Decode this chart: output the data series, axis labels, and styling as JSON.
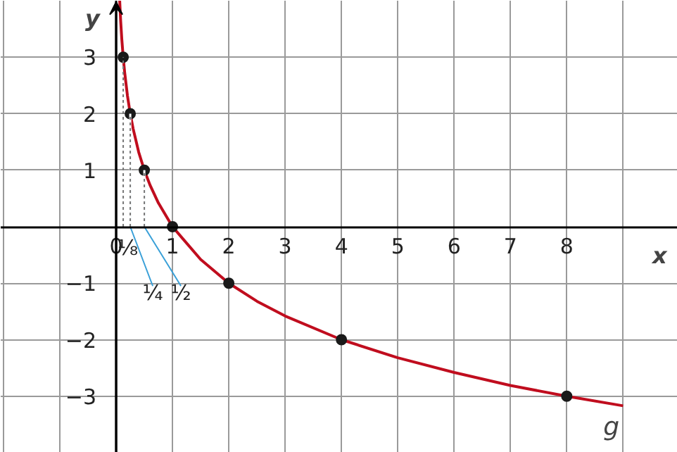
{
  "chart_data": {
    "type": "line",
    "xlabel": "x",
    "ylabel": "y",
    "xlim": [
      -2.05,
      9.97
    ],
    "ylim": [
      -4,
      4
    ],
    "xticks": [
      {
        "value": -2,
        "label": null
      },
      {
        "value": -1,
        "label": null
      },
      {
        "value": 0,
        "label": "0"
      },
      1,
      2,
      3,
      4,
      5,
      6,
      7,
      8,
      {
        "value": 9,
        "label": null
      }
    ],
    "yticks": [
      {
        "value": -4,
        "label": null
      },
      {
        "value": -3,
        "label": "−3"
      },
      {
        "value": -2,
        "label": "−2"
      },
      {
        "value": -1,
        "label": "−1"
      },
      {
        "value": 0,
        "label": null
      },
      1,
      2,
      3,
      {
        "value": 4,
        "label": null
      }
    ],
    "grid": true,
    "series": [
      {
        "name": "g",
        "color": "#c00d1e",
        "x": [
          0.0625,
          0.08,
          0.1,
          0.125,
          0.15,
          0.2,
          0.25,
          0.3,
          0.4,
          0.5,
          0.6,
          0.75,
          1,
          1.5,
          2,
          2.5,
          3,
          4,
          5,
          6,
          7,
          8,
          9
        ],
        "values": [
          4,
          3.64,
          3.32,
          3,
          2.74,
          2.32,
          2,
          1.74,
          1.32,
          1,
          0.74,
          0.42,
          0,
          -0.58,
          -1,
          -1.32,
          -1.58,
          -2,
          -2.32,
          -2.58,
          -2.81,
          -3,
          -3.17
        ]
      },
      {
        "type": "scatter",
        "color": "#1a1a1a",
        "marker": "circle",
        "x": [
          0.125,
          0.25,
          0.5,
          1,
          2,
          4,
          8
        ],
        "values": [
          3,
          2,
          1,
          0,
          -1,
          -2,
          -3
        ]
      }
    ],
    "annotations": [
      {
        "text": "⅛",
        "x": 0.125,
        "y": 3
      },
      {
        "text": "¼",
        "x": 0.25,
        "y": 2
      },
      {
        "text": "½",
        "x": 0.5,
        "y": 1
      }
    ]
  }
}
